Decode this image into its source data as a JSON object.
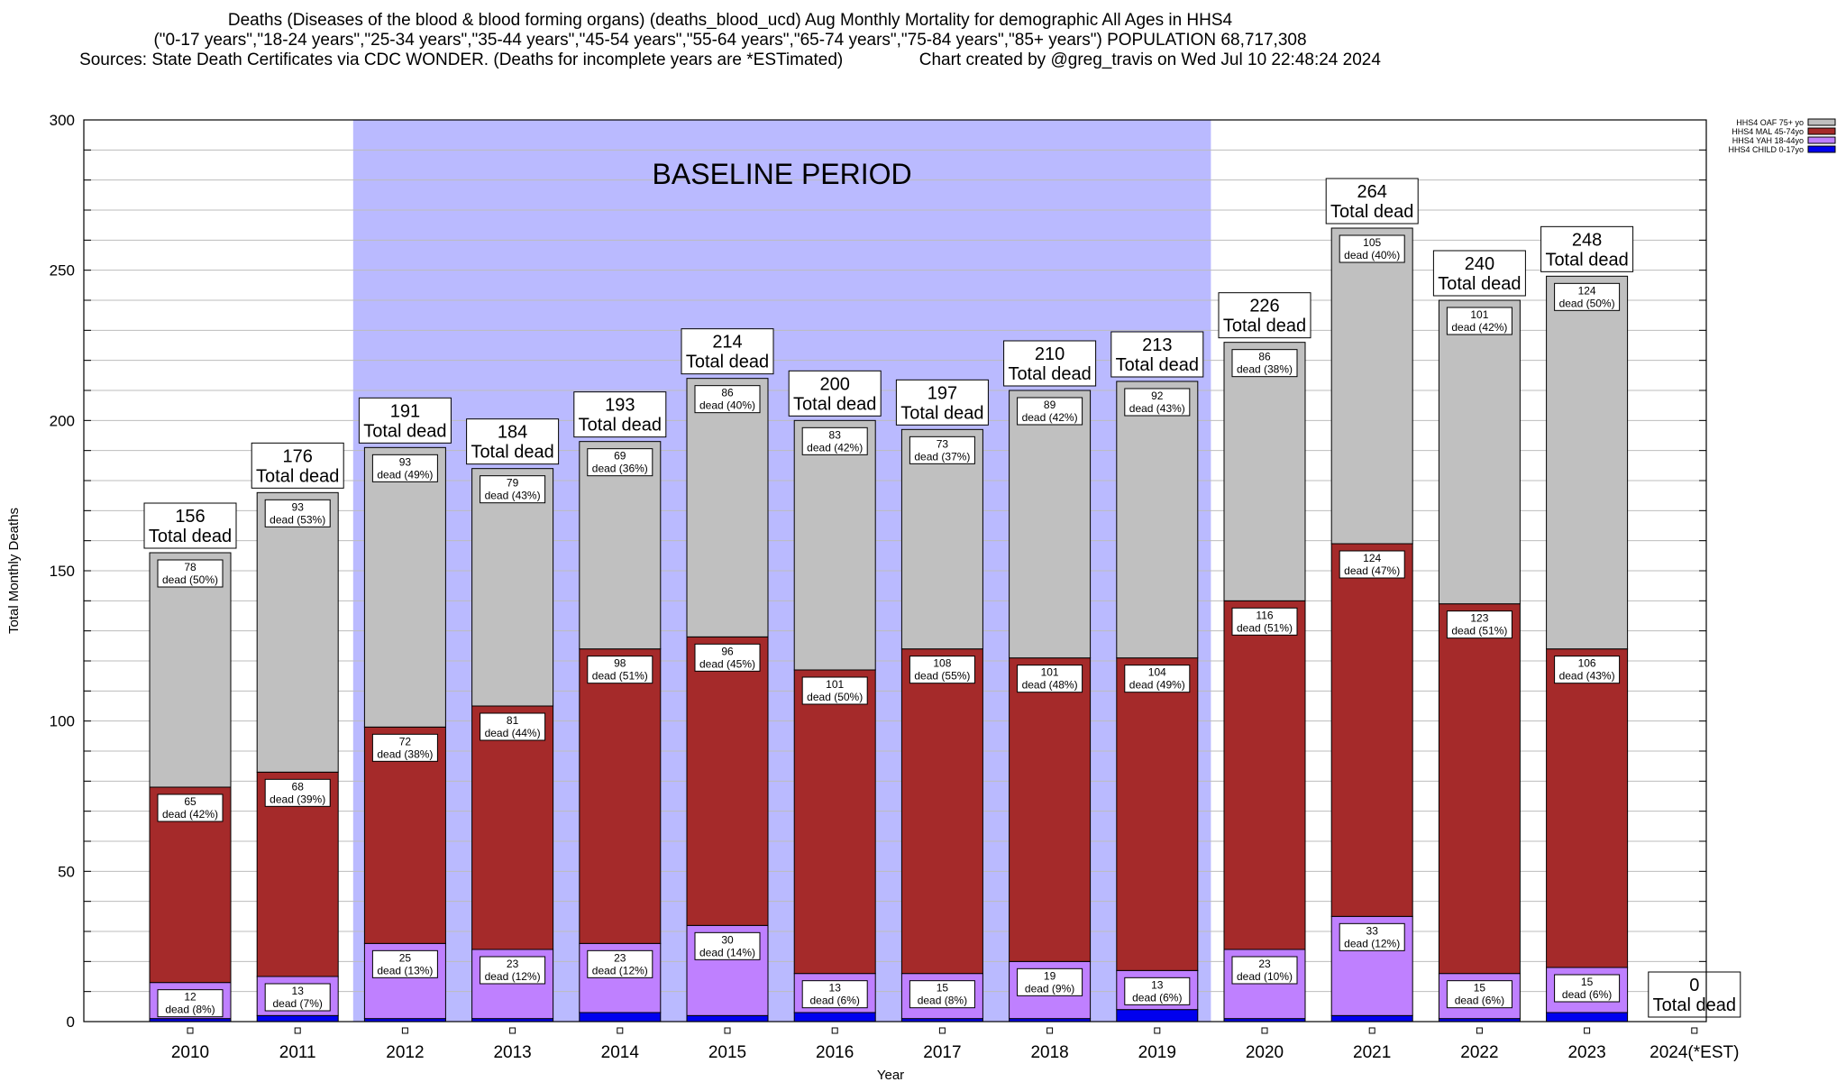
{
  "title": {
    "line1": "Deaths (Diseases of the blood & blood forming organs) (deaths_blood_ucd) Aug Monthly Mortality for demographic All Ages in HHS4",
    "line2": "(\"0-17 years\",\"18-24 years\",\"25-34 years\",\"35-44 years\",\"45-54 years\",\"55-64 years\",\"65-74 years\",\"75-84 years\",\"85+ years\") POPULATION 68,717,308",
    "line3": "Sources: State Death Certificates via CDC WONDER. (Deaths for incomplete years are *ESTimated)                Chart created by @greg_travis on Wed Jul 10 22:48:24 2024"
  },
  "chart_data": {
    "type": "bar",
    "stacked": true,
    "xlabel": "Year",
    "ylabel": "Total Monthly Deaths",
    "ylim": [
      0,
      300
    ],
    "yticks": [
      0,
      50,
      100,
      150,
      200,
      250,
      300
    ],
    "grid": true,
    "legend_position": "top-right",
    "annotation": "BASELINE PERIOD",
    "baseline_period": [
      "2012",
      "2019"
    ],
    "baseline_color": "#babaff",
    "total_label": "Total dead",
    "categories": [
      "2010",
      "2011",
      "2012",
      "2013",
      "2014",
      "2015",
      "2016",
      "2017",
      "2018",
      "2019",
      "2020",
      "2021",
      "2022",
      "2023",
      "2024(*EST)"
    ],
    "totals": [
      156,
      176,
      191,
      184,
      193,
      214,
      200,
      197,
      210,
      213,
      226,
      264,
      240,
      248,
      0
    ],
    "series": [
      {
        "name": "HHS4 CHILD 0-17yo",
        "color": "#0000ee",
        "values": [
          1,
          2,
          1,
          1,
          3,
          2,
          3,
          1,
          1,
          4,
          1,
          2,
          1,
          3,
          0
        ],
        "percents": [
          null,
          null,
          null,
          null,
          null,
          null,
          null,
          null,
          null,
          null,
          null,
          null,
          null,
          null,
          null
        ]
      },
      {
        "name": "HHS4 YAH 18-44yo",
        "color": "#bf80ff",
        "values": [
          12,
          13,
          25,
          23,
          23,
          30,
          13,
          15,
          19,
          13,
          23,
          33,
          15,
          15,
          0
        ],
        "percents": [
          8,
          7,
          13,
          12,
          12,
          14,
          6,
          8,
          9,
          6,
          10,
          12,
          6,
          6,
          null
        ]
      },
      {
        "name": "HHS4 MAL 45-74yo",
        "color": "#a52a2a",
        "values": [
          65,
          68,
          72,
          81,
          98,
          96,
          101,
          108,
          101,
          104,
          116,
          124,
          123,
          106,
          0
        ],
        "percents": [
          42,
          39,
          38,
          44,
          51,
          45,
          50,
          55,
          48,
          49,
          51,
          47,
          51,
          43,
          null
        ]
      },
      {
        "name": "HHS4 OAF 75+ yo",
        "color": "#c0c0c0",
        "values": [
          78,
          93,
          93,
          79,
          69,
          86,
          83,
          73,
          89,
          92,
          86,
          105,
          101,
          124,
          0
        ],
        "percents": [
          50,
          53,
          49,
          43,
          36,
          40,
          42,
          37,
          42,
          43,
          38,
          40,
          42,
          50,
          null
        ]
      }
    ],
    "legend_order": [
      "HHS4 OAF 75+ yo",
      "HHS4 MAL 45-74yo",
      "HHS4 YAH 18-44yo",
      "HHS4 CHILD 0-17yo"
    ]
  }
}
